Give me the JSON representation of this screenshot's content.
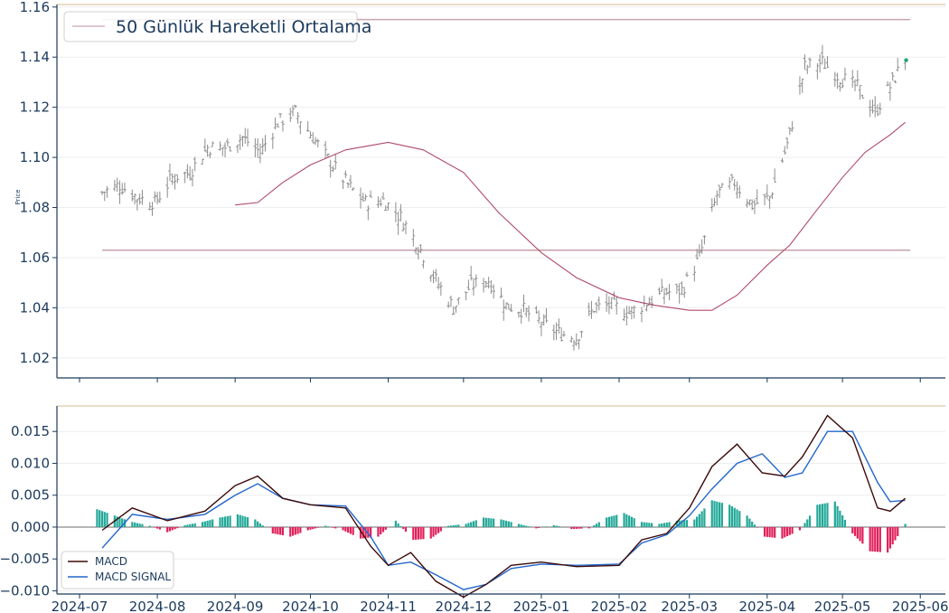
{
  "chart_data": [
    {
      "type": "candlestick",
      "ylabel": "Price",
      "ylim": [
        1.012,
        1.161
      ],
      "yticks": [
        "1.02",
        "1.04",
        "1.06",
        "1.08",
        "1.10",
        "1.12",
        "1.14",
        "1.16"
      ],
      "grid": true,
      "legend": {
        "position": "top-left",
        "entries": [
          "50 Günlük Hareketli Ortalama"
        ]
      },
      "horizontal_lines": [
        1.155,
        1.063
      ],
      "colors": {
        "bar": "#8c8c8c",
        "ma": "#b04a6a",
        "hline": "#c9a5ad",
        "last_point": "#1aa37a",
        "axis": "#1b3a5c",
        "top_border": "#d9c9a8"
      },
      "close_series": [
        [
          "2024-07-10",
          1.086
        ],
        [
          "2024-07-17",
          1.089
        ],
        [
          "2024-07-24",
          1.084
        ],
        [
          "2024-07-31",
          1.082
        ],
        [
          "2024-08-07",
          1.092
        ],
        [
          "2024-08-14",
          1.094
        ],
        [
          "2024-08-21",
          1.104
        ],
        [
          "2024-08-28",
          1.104
        ],
        [
          "2024-09-04",
          1.108
        ],
        [
          "2024-09-11",
          1.102
        ],
        [
          "2024-09-18",
          1.114
        ],
        [
          "2024-09-25",
          1.118
        ],
        [
          "2024-10-02",
          1.108
        ],
        [
          "2024-10-09",
          1.098
        ],
        [
          "2024-10-16",
          1.089
        ],
        [
          "2024-10-23",
          1.082
        ],
        [
          "2024-10-30",
          1.083
        ],
        [
          "2024-11-06",
          1.076
        ],
        [
          "2024-11-13",
          1.065
        ],
        [
          "2024-11-20",
          1.051
        ],
        [
          "2024-11-27",
          1.04
        ],
        [
          "2024-12-04",
          1.049
        ],
        [
          "2024-12-11",
          1.051
        ],
        [
          "2024-12-18",
          1.041
        ],
        [
          "2024-12-25",
          1.039
        ],
        [
          "2025-01-01",
          1.034
        ],
        [
          "2025-01-08",
          1.03
        ],
        [
          "2025-01-15",
          1.028
        ],
        [
          "2025-01-22",
          1.04
        ],
        [
          "2025-01-29",
          1.041
        ],
        [
          "2025-02-05",
          1.038
        ],
        [
          "2025-02-12",
          1.042
        ],
        [
          "2025-02-19",
          1.046
        ],
        [
          "2025-02-26",
          1.047
        ],
        [
          "2025-03-05",
          1.06
        ],
        [
          "2025-03-12",
          1.085
        ],
        [
          "2025-03-19",
          1.09
        ],
        [
          "2025-03-26",
          1.081
        ],
        [
          "2025-04-02",
          1.084
        ],
        [
          "2025-04-09",
          1.105
        ],
        [
          "2025-04-16",
          1.136
        ],
        [
          "2025-04-23",
          1.138
        ],
        [
          "2025-04-30",
          1.132
        ],
        [
          "2025-05-07",
          1.128
        ],
        [
          "2025-05-14",
          1.118
        ],
        [
          "2025-05-21",
          1.13
        ],
        [
          "2025-05-26",
          1.14
        ]
      ],
      "moving_average": [
        [
          "2024-09-01",
          1.081
        ],
        [
          "2024-09-10",
          1.082
        ],
        [
          "2024-09-20",
          1.09
        ],
        [
          "2024-10-01",
          1.097
        ],
        [
          "2024-10-15",
          1.103
        ],
        [
          "2024-11-01",
          1.106
        ],
        [
          "2024-11-15",
          1.103
        ],
        [
          "2024-12-01",
          1.094
        ],
        [
          "2024-12-15",
          1.078
        ],
        [
          "2025-01-01",
          1.062
        ],
        [
          "2025-01-15",
          1.052
        ],
        [
          "2025-02-01",
          1.044
        ],
        [
          "2025-02-15",
          1.041
        ],
        [
          "2025-03-01",
          1.039
        ],
        [
          "2025-03-10",
          1.039
        ],
        [
          "2025-03-20",
          1.045
        ],
        [
          "2025-04-01",
          1.057
        ],
        [
          "2025-04-10",
          1.065
        ],
        [
          "2025-04-20",
          1.078
        ],
        [
          "2025-05-01",
          1.092
        ],
        [
          "2025-05-10",
          1.102
        ],
        [
          "2025-05-20",
          1.109
        ],
        [
          "2025-05-26",
          1.114
        ]
      ]
    },
    {
      "type": "line+bar",
      "ylim": [
        -0.0105,
        0.019
      ],
      "yticks": [
        "−0.010",
        "−0.005",
        "0.000",
        "0.005",
        "0.010",
        "0.015"
      ],
      "xticks": [
        "2024-07",
        "2024-08",
        "2024-09",
        "2024-10",
        "2024-11",
        "2024-12",
        "2025-01",
        "2025-02",
        "2025-03",
        "2025-04",
        "2025-05",
        "2025-06"
      ],
      "grid": true,
      "legend": {
        "position": "bottom-left",
        "entries": [
          "MACD",
          "MACD SIGNAL"
        ]
      },
      "colors": {
        "macd": "#3d0a0a",
        "signal": "#2266cc",
        "hist_pos": "#22a898",
        "hist_neg": "#e0205a"
      },
      "series": [
        {
          "name": "MACD",
          "points": [
            [
              "2024-07-10",
              -0.0005
            ],
            [
              "2024-07-22",
              0.003
            ],
            [
              "2024-08-05",
              0.001
            ],
            [
              "2024-08-20",
              0.0025
            ],
            [
              "2024-09-01",
              0.0065
            ],
            [
              "2024-09-10",
              0.008
            ],
            [
              "2024-09-20",
              0.0045
            ],
            [
              "2024-10-01",
              0.0035
            ],
            [
              "2024-10-15",
              0.003
            ],
            [
              "2024-10-25",
              -0.003
            ],
            [
              "2024-11-01",
              -0.006
            ],
            [
              "2024-11-10",
              -0.004
            ],
            [
              "2024-11-20",
              -0.0085
            ],
            [
              "2024-12-01",
              -0.011
            ],
            [
              "2024-12-10",
              -0.009
            ],
            [
              "2024-12-20",
              -0.006
            ],
            [
              "2025-01-01",
              -0.0055
            ],
            [
              "2025-01-15",
              -0.0062
            ],
            [
              "2025-02-01",
              -0.006
            ],
            [
              "2025-02-10",
              -0.002
            ],
            [
              "2025-02-20",
              -0.001
            ],
            [
              "2025-03-01",
              0.003
            ],
            [
              "2025-03-10",
              0.0095
            ],
            [
              "2025-03-20",
              0.013
            ],
            [
              "2025-03-30",
              0.0085
            ],
            [
              "2025-04-08",
              0.008
            ],
            [
              "2025-04-15",
              0.011
            ],
            [
              "2025-04-25",
              0.0175
            ],
            [
              "2025-05-05",
              0.014
            ],
            [
              "2025-05-15",
              0.003
            ],
            [
              "2025-05-20",
              0.0025
            ],
            [
              "2025-05-26",
              0.0045
            ]
          ]
        },
        {
          "name": "MACD SIGNAL",
          "points": [
            [
              "2024-07-10",
              -0.0033
            ],
            [
              "2024-07-22",
              0.002
            ],
            [
              "2024-08-05",
              0.0012
            ],
            [
              "2024-08-20",
              0.002
            ],
            [
              "2024-09-01",
              0.005
            ],
            [
              "2024-09-10",
              0.0068
            ],
            [
              "2024-09-20",
              0.0045
            ],
            [
              "2024-10-01",
              0.0035
            ],
            [
              "2024-10-15",
              0.0033
            ],
            [
              "2024-10-25",
              -0.0015
            ],
            [
              "2024-11-01",
              -0.006
            ],
            [
              "2024-11-10",
              -0.0055
            ],
            [
              "2024-11-20",
              -0.0075
            ],
            [
              "2024-12-01",
              -0.0098
            ],
            [
              "2024-12-10",
              -0.009
            ],
            [
              "2024-12-20",
              -0.0065
            ],
            [
              "2025-01-01",
              -0.0058
            ],
            [
              "2025-01-15",
              -0.006
            ],
            [
              "2025-02-01",
              -0.0058
            ],
            [
              "2025-02-10",
              -0.0025
            ],
            [
              "2025-02-20",
              -0.0012
            ],
            [
              "2025-03-01",
              0.0018
            ],
            [
              "2025-03-10",
              0.006
            ],
            [
              "2025-03-20",
              0.01
            ],
            [
              "2025-03-30",
              0.0115
            ],
            [
              "2025-04-08",
              0.0078
            ],
            [
              "2025-04-15",
              0.0085
            ],
            [
              "2025-04-25",
              0.015
            ],
            [
              "2025-05-05",
              0.015
            ],
            [
              "2025-05-15",
              0.007
            ],
            [
              "2025-05-20",
              0.004
            ],
            [
              "2025-05-26",
              0.0042
            ]
          ]
        },
        {
          "name": "histogram",
          "points": [
            [
              "2024-07-08",
              0.0028
            ],
            [
              "2024-07-15",
              0.0018
            ],
            [
              "2024-07-22",
              0.0008
            ],
            [
              "2024-07-29",
              0.0002
            ],
            [
              "2024-08-05",
              -0.0008
            ],
            [
              "2024-08-12",
              0.0003
            ],
            [
              "2024-08-19",
              0.0008
            ],
            [
              "2024-08-26",
              0.0015
            ],
            [
              "2024-09-02",
              0.002
            ],
            [
              "2024-09-09",
              0.0012
            ],
            [
              "2024-09-16",
              -0.001
            ],
            [
              "2024-09-23",
              -0.0015
            ],
            [
              "2024-09-30",
              -0.0005
            ],
            [
              "2024-10-07",
              0.0002
            ],
            [
              "2024-10-14",
              -0.0005
            ],
            [
              "2024-10-21",
              -0.0018
            ],
            [
              "2024-10-28",
              -0.0015
            ],
            [
              "2024-11-04",
              0.001
            ],
            [
              "2024-11-11",
              -0.002
            ],
            [
              "2024-11-18",
              -0.0018
            ],
            [
              "2024-11-25",
              0.0002
            ],
            [
              "2024-12-02",
              0.0005
            ],
            [
              "2024-12-09",
              0.0015
            ],
            [
              "2024-12-16",
              0.0012
            ],
            [
              "2024-12-23",
              0.0005
            ],
            [
              "2024-12-30",
              -0.0002
            ],
            [
              "2025-01-06",
              0.0003
            ],
            [
              "2025-01-13",
              -0.0003
            ],
            [
              "2025-01-20",
              -0.0002
            ],
            [
              "2025-01-27",
              0.0015
            ],
            [
              "2025-02-03",
              0.0022
            ],
            [
              "2025-02-10",
              0.0008
            ],
            [
              "2025-02-17",
              0.0005
            ],
            [
              "2025-02-24",
              0.001
            ],
            [
              "2025-03-03",
              0.0012
            ],
            [
              "2025-03-10",
              0.0042
            ],
            [
              "2025-03-17",
              0.0035
            ],
            [
              "2025-03-24",
              0.0018
            ],
            [
              "2025-03-31",
              -0.0015
            ],
            [
              "2025-04-07",
              -0.0018
            ],
            [
              "2025-04-14",
              -0.0005
            ],
            [
              "2025-04-21",
              0.0035
            ],
            [
              "2025-04-28",
              0.004
            ],
            [
              "2025-05-05",
              -0.001
            ],
            [
              "2025-05-12",
              -0.0038
            ],
            [
              "2025-05-19",
              -0.004
            ],
            [
              "2025-05-26",
              0.0005
            ]
          ]
        }
      ]
    }
  ]
}
